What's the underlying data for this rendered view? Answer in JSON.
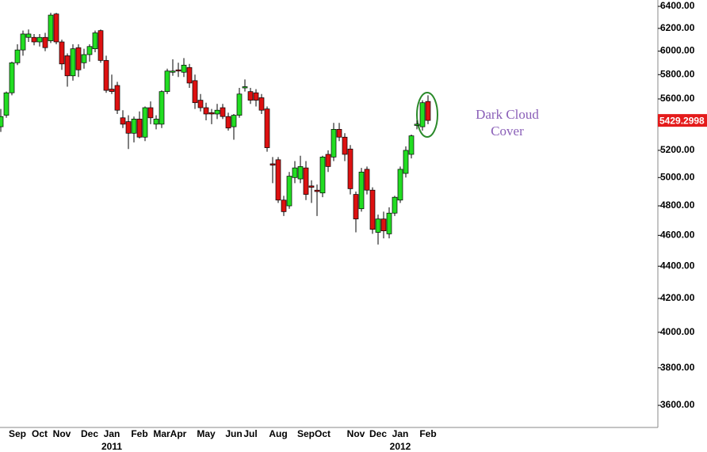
{
  "chart_data": {
    "type": "candlestick",
    "log_scale": true,
    "up_color": "#22dd22",
    "down_color": "#dd1111",
    "categories": [
      null,
      null,
      null,
      "Sep",
      null,
      null,
      null,
      "Oct",
      null,
      null,
      null,
      "Nov",
      null,
      null,
      null,
      null,
      "Dec",
      null,
      null,
      null,
      "Jan",
      null,
      null,
      null,
      null,
      "Feb",
      null,
      null,
      null,
      "Mar",
      null,
      null,
      "Apr",
      null,
      null,
      null,
      null,
      "May",
      null,
      null,
      null,
      null,
      "Jun",
      null,
      null,
      "Jul",
      null,
      null,
      null,
      null,
      "Aug",
      null,
      null,
      null,
      null,
      "Sep",
      null,
      null,
      "Oct",
      null,
      null,
      null,
      null,
      null,
      "Nov",
      null,
      null,
      null,
      "Dec",
      null,
      null,
      null,
      "Jan",
      null,
      null,
      null,
      null,
      "Feb"
    ],
    "years": [
      null,
      null,
      null,
      null,
      null,
      null,
      null,
      null,
      null,
      null,
      null,
      null,
      null,
      null,
      null,
      null,
      null,
      null,
      null,
      null,
      "2011",
      null,
      null,
      null,
      null,
      null,
      null,
      null,
      null,
      null,
      null,
      null,
      null,
      null,
      null,
      null,
      null,
      null,
      null,
      null,
      null,
      null,
      null,
      null,
      null,
      null,
      null,
      null,
      null,
      null,
      null,
      null,
      null,
      null,
      null,
      null,
      null,
      null,
      null,
      null,
      null,
      null,
      null,
      null,
      null,
      null,
      null,
      null,
      null,
      null,
      null,
      null,
      "2012",
      null,
      null,
      null,
      null,
      null
    ],
    "open": [
      5380,
      5470,
      5650,
      5900,
      6010,
      6120,
      6120,
      6080,
      6120,
      6090,
      6330,
      6080,
      5960,
      5790,
      6030,
      5900,
      5970,
      6020,
      6180,
      5920,
      5680,
      5710,
      5450,
      5420,
      5330,
      5440,
      5300,
      5530,
      5400,
      5400,
      5660,
      5820,
      5840,
      5820,
      5860,
      5750,
      5590,
      5530,
      5490,
      5480,
      5530,
      5460,
      5380,
      5470,
      5690,
      5660,
      5650,
      5610,
      5520,
      5100,
      5130,
      4840,
      4800,
      5000,
      4990,
      5070,
      4940,
      4910,
      4890,
      5170,
      5150,
      5360,
      5300,
      5210,
      4880,
      4780,
      5060,
      4910,
      4620,
      4710,
      4610,
      4750,
      4840,
      5030,
      5170,
      5390,
      5380,
      5580
    ],
    "high": [
      5520,
      5660,
      5910,
      6060,
      6180,
      6190,
      6150,
      6150,
      6160,
      6340,
      6340,
      6100,
      5980,
      6060,
      6060,
      6020,
      6060,
      6180,
      6190,
      5960,
      5800,
      5740,
      5510,
      5470,
      5460,
      5500,
      5540,
      5580,
      5470,
      5670,
      5850,
      5930,
      5900,
      5940,
      5890,
      5800,
      5640,
      5570,
      5520,
      5560,
      5560,
      5490,
      5480,
      5690,
      5760,
      5690,
      5680,
      5640,
      5540,
      5150,
      5150,
      4870,
      5040,
      5120,
      5160,
      5120,
      4980,
      4950,
      5160,
      5200,
      5410,
      5410,
      5330,
      5240,
      4900,
      5070,
      5080,
      4930,
      4740,
      4760,
      4790,
      4870,
      5080,
      5230,
      5320,
      5430,
      5590,
      5630
    ],
    "low": [
      5340,
      5450,
      5630,
      5880,
      5960,
      6080,
      6050,
      6040,
      6000,
      6070,
      6060,
      5840,
      5700,
      5750,
      5780,
      5850,
      5910,
      5990,
      5900,
      5650,
      5640,
      5480,
      5370,
      5210,
      5260,
      5290,
      5270,
      5400,
      5360,
      5370,
      5640,
      5790,
      5780,
      5780,
      5690,
      5520,
      5500,
      5430,
      5400,
      5440,
      5440,
      5350,
      5280,
      5450,
      5660,
      5560,
      5540,
      5480,
      5190,
      4960,
      4820,
      4730,
      4780,
      4960,
      4960,
      4840,
      4820,
      4730,
      4860,
      5040,
      5120,
      5270,
      5120,
      4880,
      4620,
      4760,
      4880,
      4610,
      4540,
      4580,
      4580,
      4730,
      4820,
      5000,
      5140,
      5360,
      5350,
      5400
    ],
    "close": [
      5460,
      5650,
      5900,
      6010,
      6150,
      6150,
      6080,
      6120,
      6030,
      6320,
      6080,
      5890,
      5790,
      6020,
      5840,
      5970,
      6040,
      6160,
      5920,
      5670,
      5660,
      5510,
      5400,
      5330,
      5440,
      5300,
      5530,
      5450,
      5440,
      5660,
      5830,
      5830,
      5830,
      5880,
      5730,
      5570,
      5530,
      5480,
      5480,
      5510,
      5460,
      5370,
      5470,
      5640,
      5700,
      5590,
      5590,
      5510,
      5220,
      5090,
      4840,
      4760,
      5010,
      5070,
      5080,
      4880,
      4930,
      4900,
      5150,
      5080,
      5360,
      5300,
      5170,
      4920,
      4710,
      5040,
      4910,
      4640,
      4710,
      4630,
      4750,
      4860,
      5060,
      5200,
      5310,
      5400,
      5570,
      5429.2998
    ],
    "last_value_label": "5429.2998",
    "annotation": [
      "Dark Cloud",
      "Cover"
    ],
    "ylim": [
      3487,
      6459
    ],
    "yticks": [
      {
        "value": 3600,
        "label": "3600.00"
      },
      {
        "value": 3800,
        "label": "3800.00"
      },
      {
        "value": 4000,
        "label": "4000.00"
      },
      {
        "value": 4200,
        "label": "4200.00"
      },
      {
        "value": 4400,
        "label": "4400.00"
      },
      {
        "value": 4600,
        "label": "4600.00"
      },
      {
        "value": 4800,
        "label": "4800.00"
      },
      {
        "value": 5000,
        "label": "5000.00"
      },
      {
        "value": 5200,
        "label": "5200.00"
      },
      {
        "value": 5400,
        "label": "5400.00"
      },
      {
        "value": 5600,
        "label": "5600.00"
      },
      {
        "value": 5800,
        "label": "5800.00"
      },
      {
        "value": 6000,
        "label": "6000.00"
      },
      {
        "value": 6200,
        "label": "6200.00"
      },
      {
        "value": 6400,
        "label": "6400.00"
      }
    ]
  }
}
